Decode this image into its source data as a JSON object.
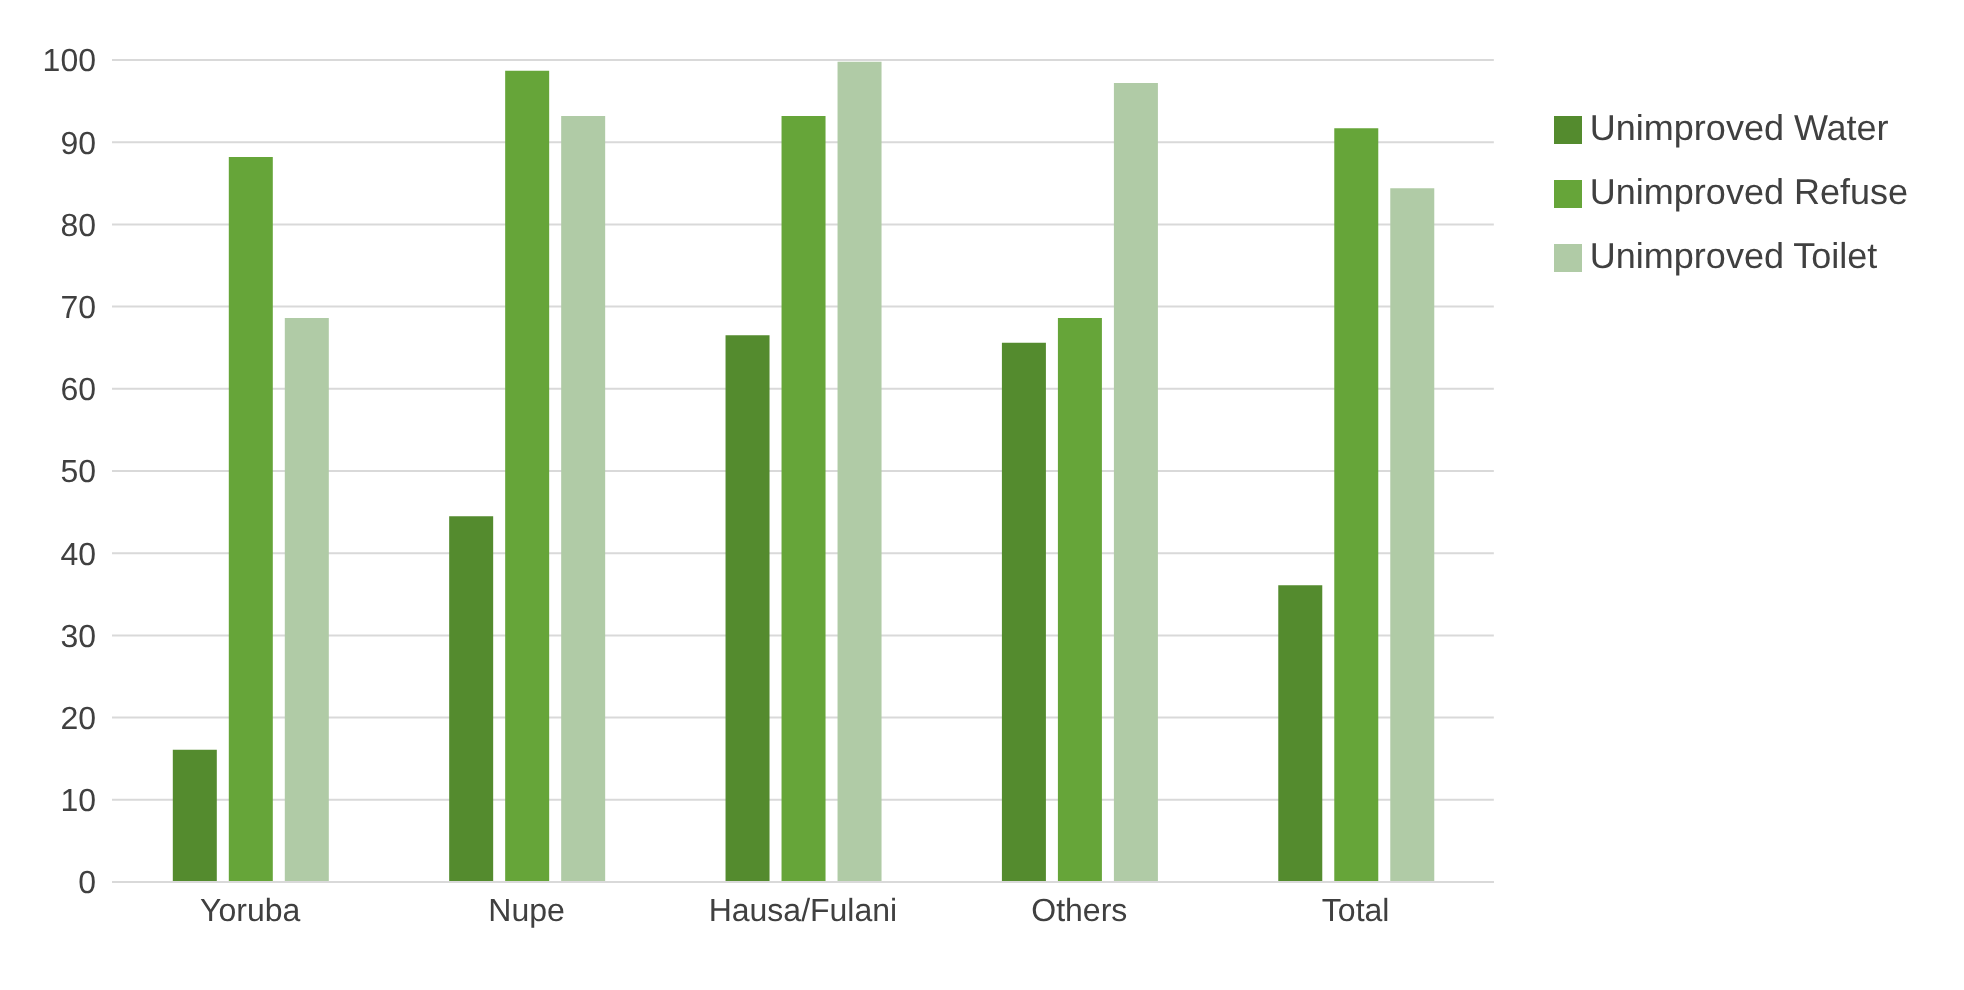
{
  "chart_data": {
    "type": "bar",
    "categories": [
      "Yoruba",
      "Nupe",
      "Hausa/Fulani",
      "Others",
      "Total"
    ],
    "series": [
      {
        "name": "Unimproved Water",
        "color": "#548b2e",
        "values": [
          16.1,
          44.5,
          66.5,
          65.6,
          36.1
        ]
      },
      {
        "name": "Unimproved Refuse",
        "color": "#66a539",
        "values": [
          88.2,
          98.7,
          93.2,
          68.6,
          91.7
        ]
      },
      {
        "name": "Unimproved Toilet",
        "color": "#b0cba6",
        "values": [
          68.6,
          93.2,
          99.8,
          97.2,
          84.4
        ]
      }
    ],
    "ylim": [
      0,
      100
    ],
    "yticks": [
      0,
      10,
      20,
      30,
      40,
      50,
      60,
      70,
      80,
      90,
      100
    ],
    "grid": "y",
    "legend": "right"
  }
}
